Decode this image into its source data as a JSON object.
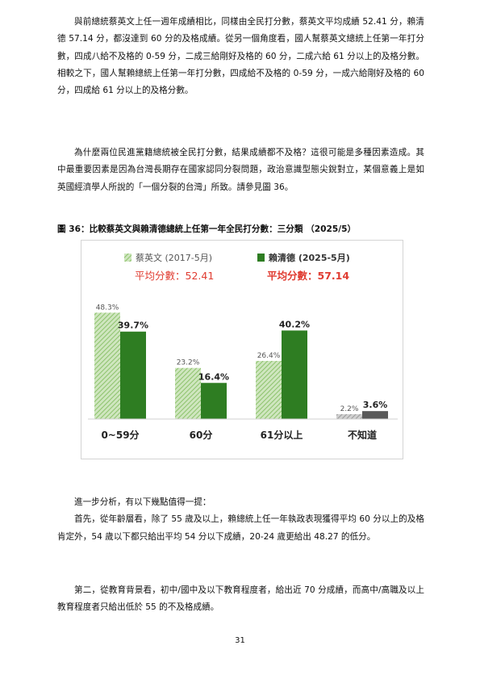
{
  "paragraphs": {
    "p1": "與前總統蔡英文上任一週年成績相比，同樣由全民打分數，蔡英文平均成績 52.41 分，賴清德 57.14 分，都沒達到 60 分的及格成績。從另一個角度看，國人幫蔡英文總統上任第一年打分數，四成八給不及格的 0-59 分，二成三給剛好及格的 60 分，二成六給 61 分以上的及格分數。相較之下，國人幫賴總統上任第一年打分數，四成給不及格的 0-59 分，一成六給剛好及格的 60 分，四成給 61 分以上的及格分數。",
    "p2": "為什麼兩位民進黨籍總統被全民打分數，結果成績都不及格？這很可能是多種因素造成。其中最重要因素是因為台灣長期存在國家認同分裂問題，政治意識型態尖銳對立，某個意義上是如英國經濟學人所說的「一個分裂的台灣」所致。請參見圖 36。",
    "p3_line1": "進一步分析，有以下幾點值得一提：",
    "p3_body": "首先，從年齡層看，除了 55 歲及以上，賴總統上任一年執政表現獲得平均 60 分以上的及格肯定外，54 歲以下都只給出平均 54 分以下成績，20-24 歲更給出 48.27 的低分。",
    "p4": "第二，從教育背景看，初中/國中及以下教育程度者，給出近 70 分成績，而高中/高職及以上教育程度者只給出低於 55 的不及格成績。"
  },
  "figure_title": "圖 36：比較蔡英文與賴清德總統上任第一年全民打分數：三分類 （2025/5）",
  "page_number": "31",
  "chart_data": {
    "type": "bar",
    "categories": [
      "0~59分",
      "60分",
      "61分以上",
      "不知道"
    ],
    "series": [
      {
        "name": "蔡英文 (2017-5月)",
        "values": [
          48.3,
          23.2,
          26.4,
          2.2
        ],
        "color": "#a8d08d",
        "pattern": "hatched"
      },
      {
        "name": "賴清德 (2025-5月)",
        "values": [
          39.7,
          16.4,
          40.2,
          3.6
        ],
        "color": "#2e7d22",
        "pattern": "solid"
      }
    ],
    "data_labels": [
      [
        "48.3%",
        "23.2%",
        "26.4%",
        "2.2%"
      ],
      [
        "39.7%",
        "16.4%",
        "40.2%",
        "3.6%"
      ]
    ],
    "unknown_colors": [
      "#a6a6a6",
      "#595959"
    ],
    "annotations": [
      "平均分數：52.41",
      "平均分數：57.14"
    ],
    "annotation_color": "#e03c31",
    "ylim": [
      0,
      55
    ],
    "legend_position": "top",
    "grid": false,
    "title": "",
    "xlabel": "",
    "ylabel": ""
  }
}
